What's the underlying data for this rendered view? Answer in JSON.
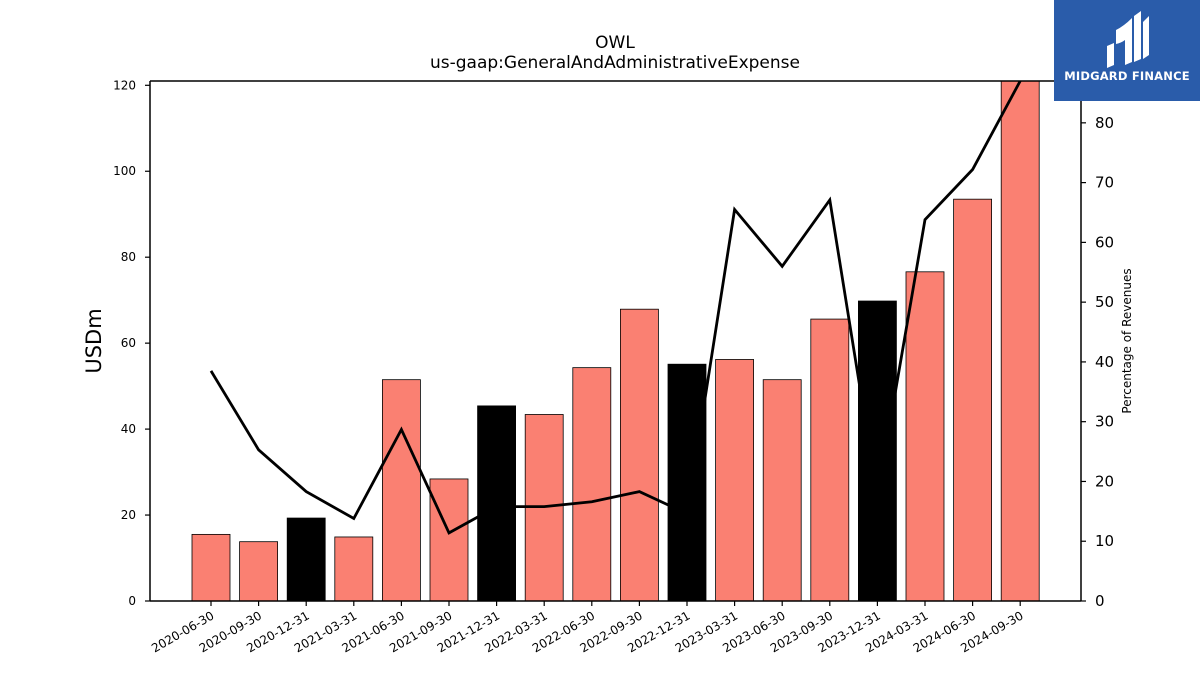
{
  "chart_data": {
    "type": "bar",
    "title": "OWL",
    "subtitle": "us-gaap:GeneralAndAdministrativeExpense",
    "ylabel": "USDm",
    "y2label": "Percentage of Revenues",
    "ylim": [
      0,
      121
    ],
    "y2lim": [
      0,
      87
    ],
    "yticks": [
      0,
      20,
      40,
      60,
      80,
      100,
      120
    ],
    "y2ticks": [
      0,
      10,
      20,
      30,
      40,
      50,
      60,
      70,
      80
    ],
    "grid": false,
    "categories": [
      "2020-06-30",
      "2020-09-30",
      "2020-12-31",
      "2021-03-31",
      "2021-06-30",
      "2021-09-30",
      "2021-12-31",
      "2022-03-31",
      "2022-06-30",
      "2022-09-30",
      "2022-12-31",
      "2023-03-31",
      "2023-06-30",
      "2023-09-30",
      "2023-12-31",
      "2024-03-31",
      "2024-06-30",
      "2024-09-30"
    ],
    "series": [
      {
        "type": "bar",
        "axis": "left",
        "values": [
          15.5,
          13.8,
          19.3,
          14.9,
          51.5,
          28.4,
          45.4,
          43.4,
          54.3,
          67.9,
          55.1,
          56.2,
          51.5,
          65.6,
          69.8,
          76.6,
          93.5,
          121
        ],
        "colors": [
          "#fa8072",
          "#fa8072",
          "#000000",
          "#fa8072",
          "#fa8072",
          "#fa8072",
          "#000000",
          "#fa8072",
          "#fa8072",
          "#fa8072",
          "#000000",
          "#fa8072",
          "#fa8072",
          "#fa8072",
          "#000000",
          "#fa8072",
          "#fa8072",
          "#fa8072"
        ]
      },
      {
        "type": "line",
        "axis": "right",
        "color": "#000000",
        "values": [
          38.5,
          25.3,
          18.3,
          13.8,
          28.7,
          11.4,
          15.8,
          15.8,
          16.6,
          18.3,
          14.6,
          65.5,
          56.0,
          67.1,
          17.5,
          63.8,
          72.2,
          87.0
        ]
      }
    ]
  },
  "logo": {
    "text": "MIDGARD FINANCE",
    "background": "#2a5caa"
  }
}
